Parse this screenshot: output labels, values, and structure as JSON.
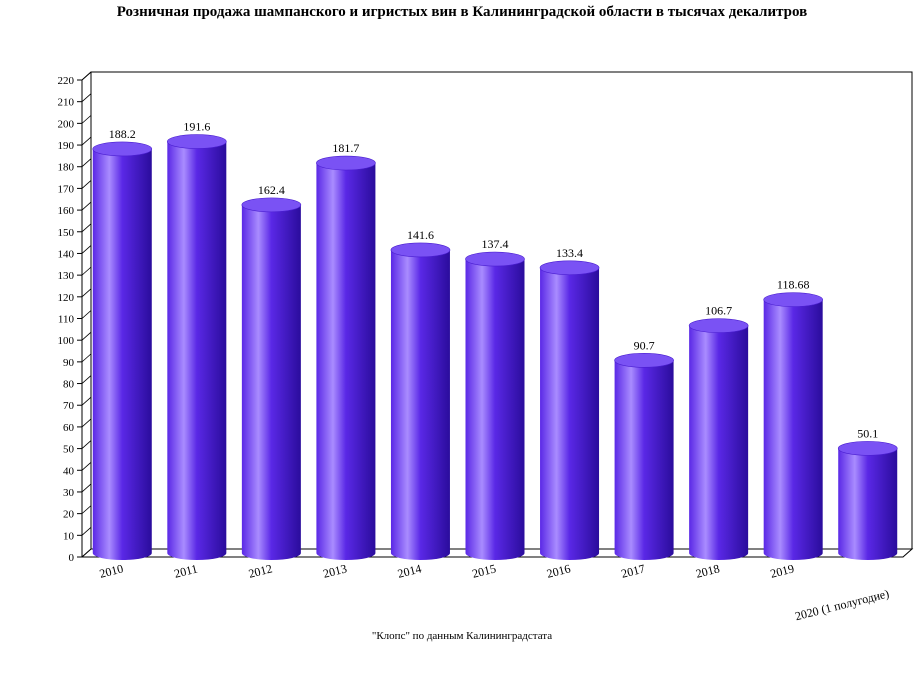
{
  "title": "Розничная продажа шампанского и игристых вин в Калининградской области в тысячах декалитров",
  "source_note": "\"Клопс\" по данным Калининградстата",
  "colors": {
    "bar_base": "#5a28e6",
    "bar_light": "#a98cff",
    "bar_dark": "#2a0c9c",
    "bar_top": "#7a52f4"
  },
  "chart_data": {
    "type": "bar",
    "categories": [
      "2010",
      "2011",
      "2012",
      "2013",
      "2014",
      "2015",
      "2016",
      "2017",
      "2018",
      "2019",
      "2020 (1 полугодие)"
    ],
    "values": [
      188.2,
      191.6,
      162.4,
      181.7,
      141.6,
      137.4,
      133.4,
      90.7,
      106.7,
      118.68,
      50.1
    ],
    "data_labels": [
      "188.2",
      "191.6",
      "162.4",
      "181.7",
      "141.6",
      "137.4",
      "133.4",
      "90.7",
      "106.7",
      "118.68",
      "50.1"
    ],
    "ylim": [
      0,
      220
    ],
    "yticks": [
      "0",
      "10",
      "20",
      "30",
      "40",
      "50",
      "60",
      "70",
      "80",
      "90",
      "100",
      "110",
      "120",
      "130",
      "140",
      "150",
      "160",
      "170",
      "180",
      "190",
      "200",
      "210",
      "220"
    ],
    "grid": false,
    "legend": "none"
  }
}
